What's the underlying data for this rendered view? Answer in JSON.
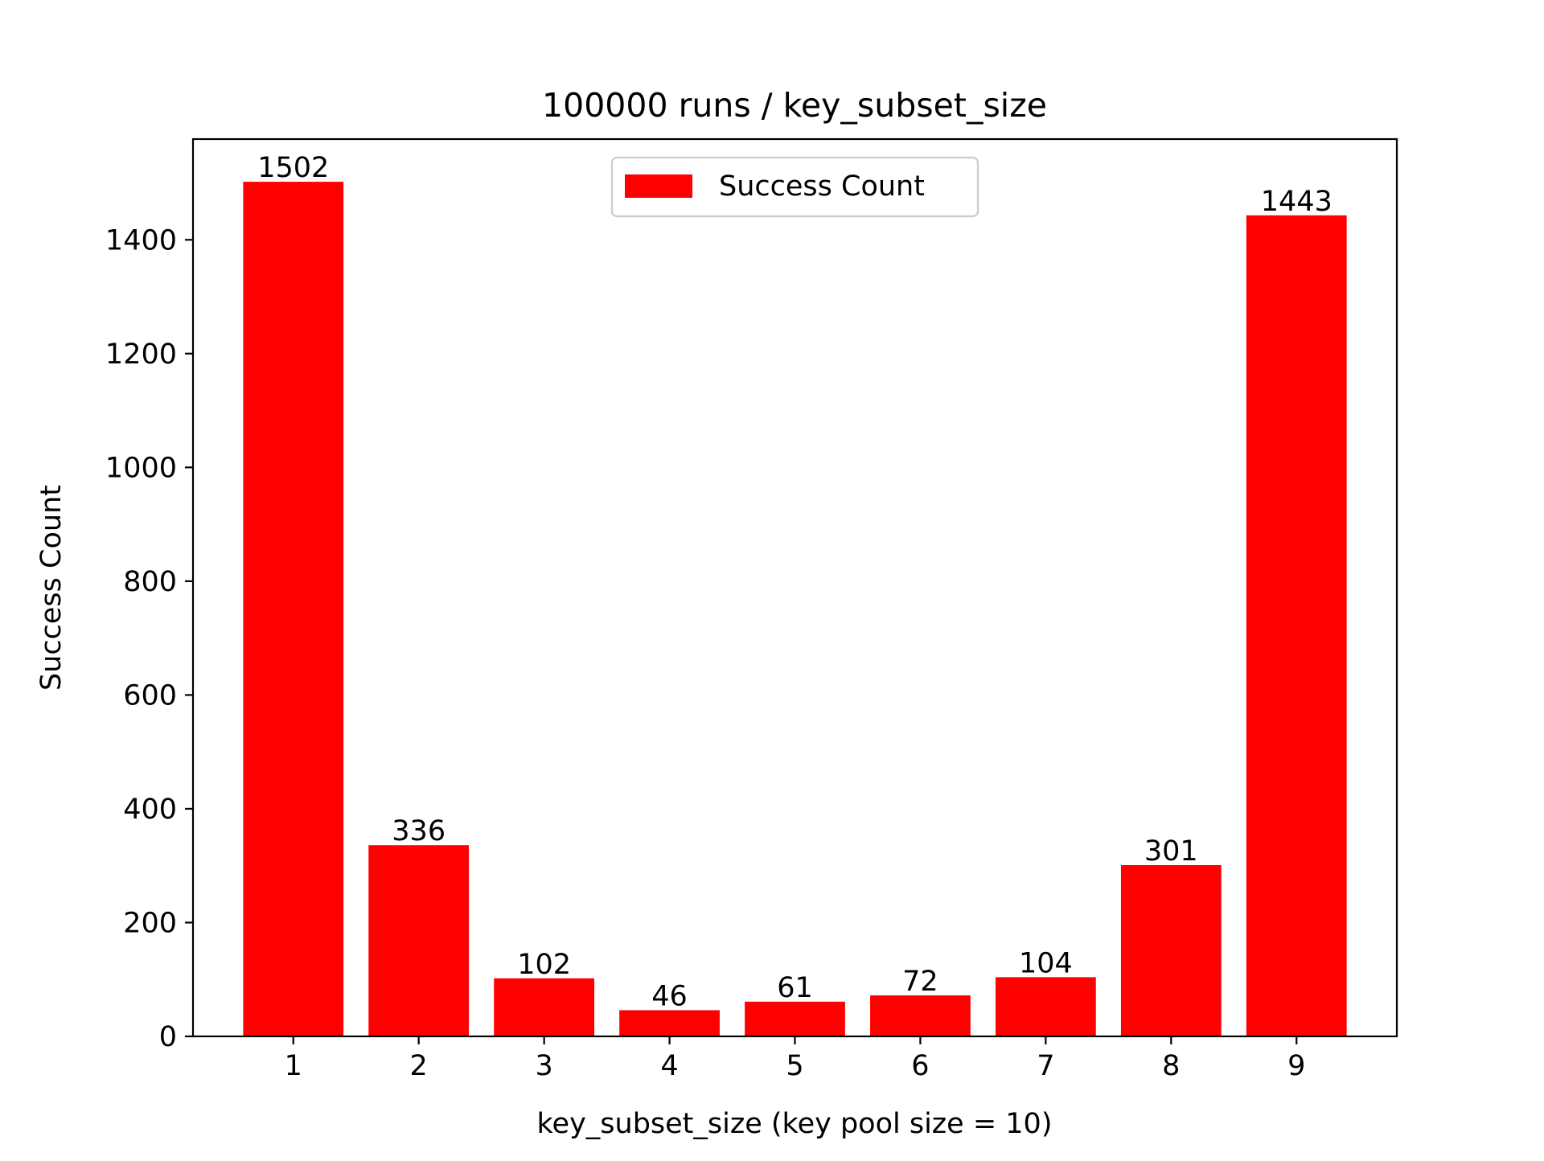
{
  "chart_data": {
    "type": "bar",
    "title": "100000 runs / key_subset_size",
    "xlabel": "key_subset_size (key pool size = 10)",
    "ylabel": "Success Count",
    "categories": [
      "1",
      "2",
      "3",
      "4",
      "5",
      "6",
      "7",
      "8",
      "9"
    ],
    "series": [
      {
        "name": "Success Count",
        "values": [
          1502,
          336,
          102,
          46,
          61,
          72,
          104,
          301,
          1443
        ],
        "color": "#ff0000"
      }
    ],
    "data_labels": [
      "1502",
      "336",
      "102",
      "46",
      "61",
      "72",
      "104",
      "301",
      "1443"
    ],
    "ylim": [
      0,
      1577
    ],
    "yticks": [
      0,
      200,
      400,
      600,
      800,
      1000,
      1200,
      1400
    ],
    "grid": false,
    "legend_position": "upper center"
  }
}
